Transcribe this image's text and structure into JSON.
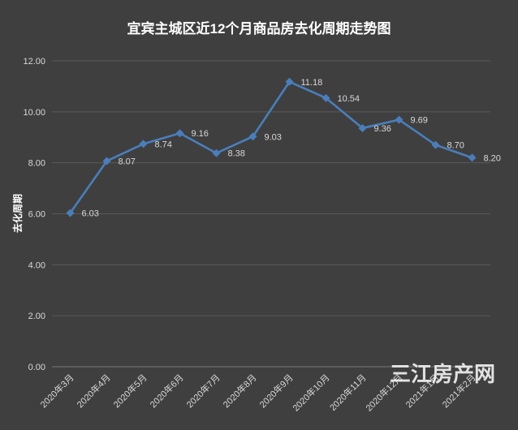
{
  "chart_data": {
    "type": "line",
    "title": "宜宾主城区近12个月商品房去化周期走势图",
    "ylabel": "去化周期",
    "xlabel": "",
    "categories": [
      "2020年3月",
      "2020年4月",
      "2020年5月",
      "2020年6月",
      "2020年7月",
      "2020年8月",
      "2020年9月",
      "2020年10月",
      "2020年11月",
      "2020年12月",
      "2021年1月",
      "2021年2月"
    ],
    "values": [
      6.03,
      8.07,
      8.74,
      9.16,
      8.38,
      9.03,
      11.18,
      10.54,
      9.36,
      9.69,
      8.7,
      8.2
    ],
    "value_labels": [
      "6.03",
      "8.07",
      "8.74",
      "9.16",
      "8.38",
      "9.03",
      "11.18",
      "10.54",
      "9.36",
      "9.69",
      "8.70",
      "8.20"
    ],
    "ylim": [
      0,
      12
    ],
    "yticks": [
      "0.00",
      "2.00",
      "4.00",
      "6.00",
      "8.00",
      "10.00",
      "12.00"
    ],
    "grid": true,
    "legend": "none",
    "colors": {
      "background": "#3f3f3f",
      "line": "#4a7ebb",
      "grid": "#5a5a5a",
      "text": "#d9d9d9",
      "title": "#ffffff"
    }
  },
  "watermark": "三江房产网"
}
